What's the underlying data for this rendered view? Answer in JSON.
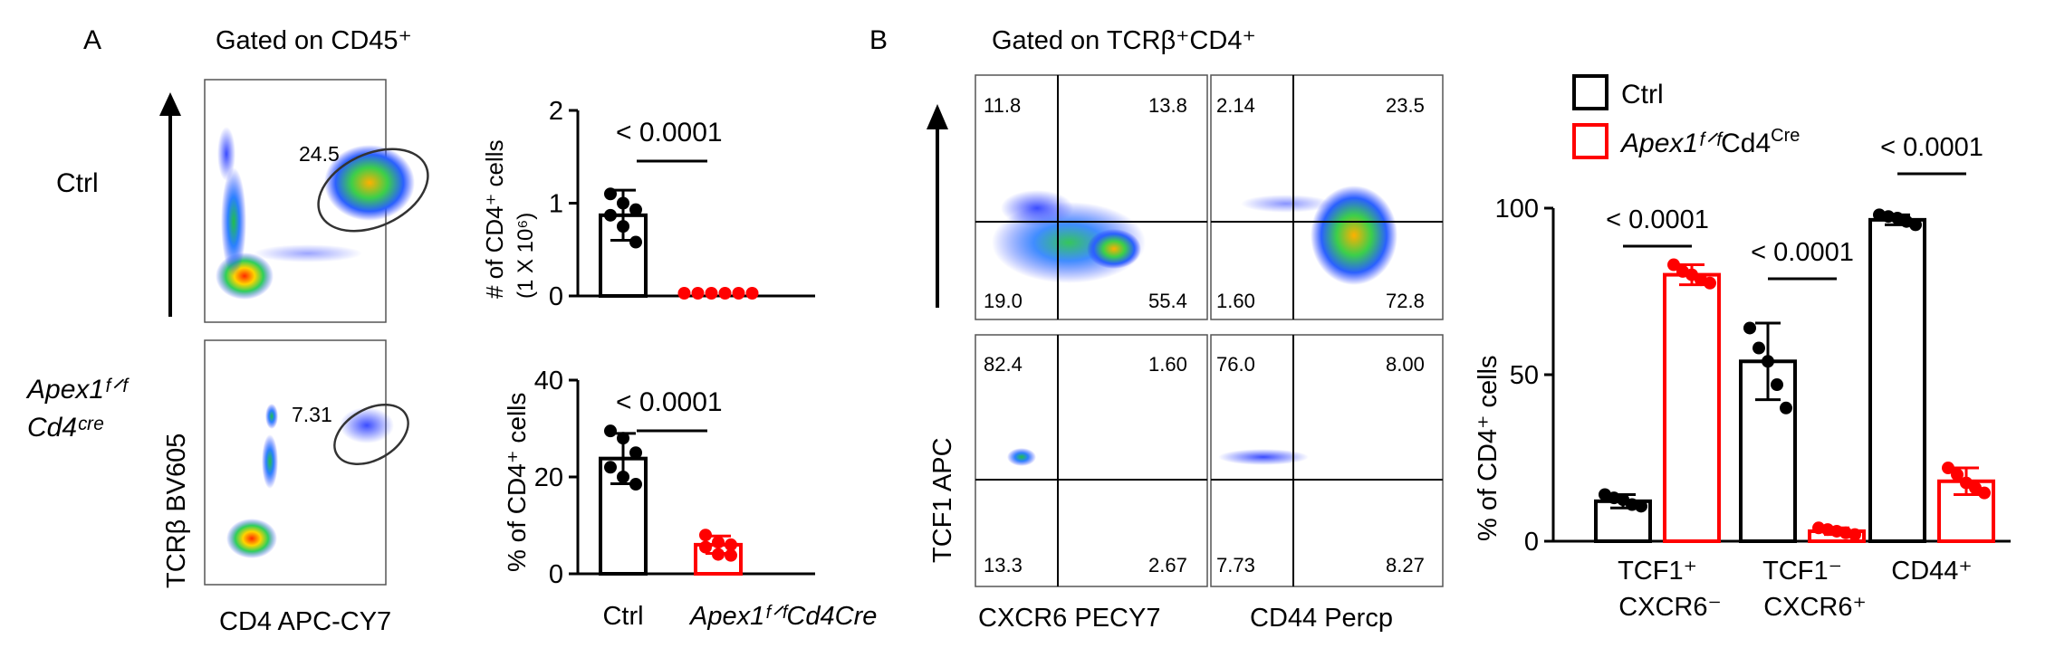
{
  "panel_a": {
    "label": "A",
    "gate_title": "Gated on CD45⁺",
    "row_ctrl_label": "Ctrl",
    "row_ko_label_line1": "Apex1ᶠᐟᶠ",
    "row_ko_label_line2": "Cd4ᶜʳᵉ",
    "y_axis": "TCRβ BV605",
    "x_axis": "CD4 APC-CY7",
    "ctrl_gate_pct": "24.5",
    "ko_gate_pct": "7.31"
  },
  "panel_b": {
    "label": "B",
    "gate_title": "Gated on TCRβ⁺CD4⁺",
    "y_axis": "TCF1 APC",
    "x_axis_left": "CXCR6 PECY7",
    "x_axis_right": "CD44 Percp",
    "quadrants": {
      "ctrl_cxcr6": [
        "11.8",
        "13.8",
        "19.0",
        "55.4"
      ],
      "ctrl_cd44": [
        "2.14",
        "23.5",
        "1.60",
        "72.8"
      ],
      "ko_cxcr6": [
        "82.4",
        "1.60",
        "13.3",
        "2.67"
      ],
      "ko_cd44": [
        "76.0",
        "8.00",
        "7.73",
        "8.27"
      ]
    }
  },
  "chart_data": [
    {
      "type": "bar",
      "ylabel_line1": "# of  CD4⁺ cells",
      "ylabel_line2": "(1 X 10⁶)",
      "ylim": [
        0,
        2
      ],
      "yticks": [
        "0",
        "1",
        "2"
      ],
      "categories": [
        "Ctrl",
        "Apex1f/fCd4Cre"
      ],
      "values": [
        0.87,
        0.0
      ],
      "sd": [
        0.27,
        0.0
      ],
      "points": [
        [
          1.1,
          1.0,
          0.93,
          0.87,
          0.75,
          0.58
        ],
        [
          0,
          0,
          0,
          0,
          0,
          0
        ]
      ],
      "colors": [
        "#000000",
        "#ff0000"
      ],
      "pvalue": "< 0.0001"
    },
    {
      "type": "bar",
      "ylabel": "%  of  CD4⁺ cells",
      "ylim": [
        0,
        40
      ],
      "yticks": [
        "0",
        "20",
        "40"
      ],
      "categories": [
        "Ctrl",
        "Apex1f/fCd4Cre"
      ],
      "values": [
        23.8,
        6.0
      ],
      "sd": [
        5.2,
        1.8
      ],
      "points": [
        [
          29.5,
          28.0,
          25.0,
          22.0,
          20.0,
          18.5
        ],
        [
          8.0,
          6.5,
          6.0,
          5.5,
          4.0,
          3.8
        ]
      ],
      "colors": [
        "#000000",
        "#ff0000"
      ],
      "pvalue": "< 0.0001",
      "category_labels": [
        "Ctrl",
        "Apex1ᶠᐟᶠCd4Cre"
      ]
    },
    {
      "type": "bar",
      "ylabel": "%  of  CD4⁺ cells",
      "ylim": [
        0,
        100
      ],
      "yticks": [
        "0",
        "50",
        "100"
      ],
      "legend": [
        "Ctrl",
        "Apex1f/fCd4Cre"
      ],
      "legend_display": {
        "ctrl": "Ctrl",
        "ko_italic": "Apex1ᶠᐟᶠ",
        "ko_rest": "Cd4",
        "ko_sup": "Cre"
      },
      "categories": [
        "TCF1⁺ CXCR6⁻",
        "TCF1⁻ CXCR6⁺",
        "CD44⁺"
      ],
      "category_lines": [
        [
          "TCF1⁺",
          "CXCR6⁻"
        ],
        [
          "TCF1⁻",
          "CXCR6⁺"
        ],
        [
          "CD44⁺"
        ]
      ],
      "series": [
        {
          "name": "Ctrl",
          "color": "#000000",
          "values": [
            12.0,
            54.0,
            96.5
          ],
          "sd": [
            2.0,
            11.5,
            1.5
          ],
          "points": [
            [
              14.0,
              13.0,
              12.5,
              11.0,
              10.5
            ],
            [
              64.0,
              58.0,
              54.0,
              47.0,
              40.0
            ],
            [
              98.0,
              97.5,
              97.0,
              96.0,
              95.0
            ]
          ]
        },
        {
          "name": "Apex1f/fCd4Cre",
          "color": "#ff0000",
          "values": [
            80.0,
            3.0,
            18.0
          ],
          "sd": [
            3.0,
            1.0,
            4.0
          ],
          "points": [
            [
              83.0,
              81.0,
              80.0,
              78.5,
              77.5
            ],
            [
              4.0,
              3.5,
              3.0,
              2.5,
              2.0
            ],
            [
              22.0,
              20.0,
              17.5,
              16.0,
              14.5
            ]
          ]
        }
      ],
      "pvalues": [
        "< 0.0001",
        "< 0.0001",
        "< 0.0001"
      ]
    }
  ]
}
